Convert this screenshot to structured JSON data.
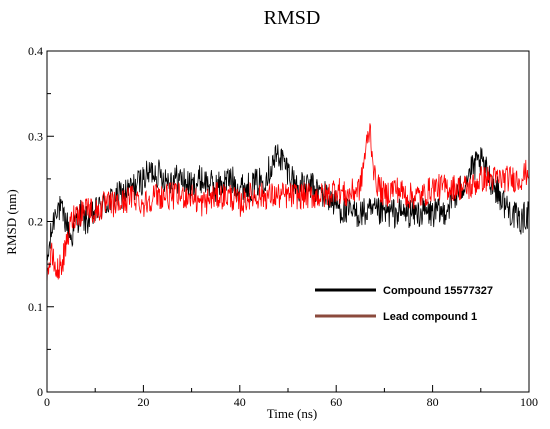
{
  "colors": {
    "compound": "#000000",
    "lead_legend": "#8b4a3c",
    "lead_line": "#ff0000",
    "frame": "#000000",
    "background": "#ffffff"
  },
  "chart_data": {
    "type": "line",
    "title": "RMSD",
    "xlabel": "Time (ns)",
    "ylabel": "RMSD (nm)",
    "xlim": [
      0,
      100
    ],
    "ylim": [
      0,
      0.4
    ],
    "xticks": [
      "0",
      "20",
      "40",
      "60",
      "80",
      "100"
    ],
    "yticks": [
      "0",
      "0.1",
      "0.2",
      "0.3",
      "0.4"
    ],
    "grid": false,
    "legend_position": "bottom-right",
    "series": [
      {
        "name": "Compound 15577327",
        "color": "#000000",
        "x": [
          0,
          1,
          2,
          3,
          4,
          5,
          6,
          7,
          8,
          10,
          12,
          15,
          18,
          20,
          22,
          25,
          28,
          30,
          32,
          35,
          38,
          40,
          42,
          45,
          48,
          50,
          52,
          55,
          58,
          60,
          62,
          65,
          67,
          70,
          72,
          75,
          78,
          80,
          82,
          85,
          88,
          90,
          92,
          95,
          98,
          100
        ],
        "y": [
          0.15,
          0.19,
          0.22,
          0.21,
          0.2,
          0.18,
          0.2,
          0.21,
          0.2,
          0.21,
          0.22,
          0.23,
          0.24,
          0.25,
          0.26,
          0.25,
          0.25,
          0.24,
          0.25,
          0.24,
          0.25,
          0.24,
          0.24,
          0.25,
          0.28,
          0.26,
          0.24,
          0.24,
          0.23,
          0.22,
          0.21,
          0.21,
          0.21,
          0.21,
          0.21,
          0.21,
          0.21,
          0.21,
          0.21,
          0.23,
          0.26,
          0.27,
          0.25,
          0.22,
          0.2,
          0.21
        ]
      },
      {
        "name": "Lead compound 1",
        "color": "#ff0000",
        "x": [
          0,
          1,
          2,
          3,
          4,
          5,
          6,
          7,
          8,
          10,
          12,
          15,
          18,
          20,
          22,
          25,
          28,
          30,
          32,
          35,
          38,
          40,
          42,
          45,
          48,
          50,
          52,
          55,
          58,
          60,
          62,
          65,
          66,
          67,
          68,
          70,
          72,
          75,
          78,
          80,
          82,
          85,
          88,
          90,
          92,
          95,
          98,
          100
        ],
        "y": [
          0.14,
          0.16,
          0.14,
          0.15,
          0.17,
          0.2,
          0.21,
          0.21,
          0.22,
          0.21,
          0.22,
          0.22,
          0.23,
          0.22,
          0.23,
          0.23,
          0.23,
          0.23,
          0.22,
          0.23,
          0.23,
          0.22,
          0.23,
          0.23,
          0.23,
          0.23,
          0.23,
          0.23,
          0.23,
          0.24,
          0.23,
          0.24,
          0.28,
          0.31,
          0.25,
          0.23,
          0.24,
          0.23,
          0.23,
          0.24,
          0.24,
          0.24,
          0.24,
          0.25,
          0.25,
          0.25,
          0.25,
          0.26
        ]
      }
    ]
  }
}
